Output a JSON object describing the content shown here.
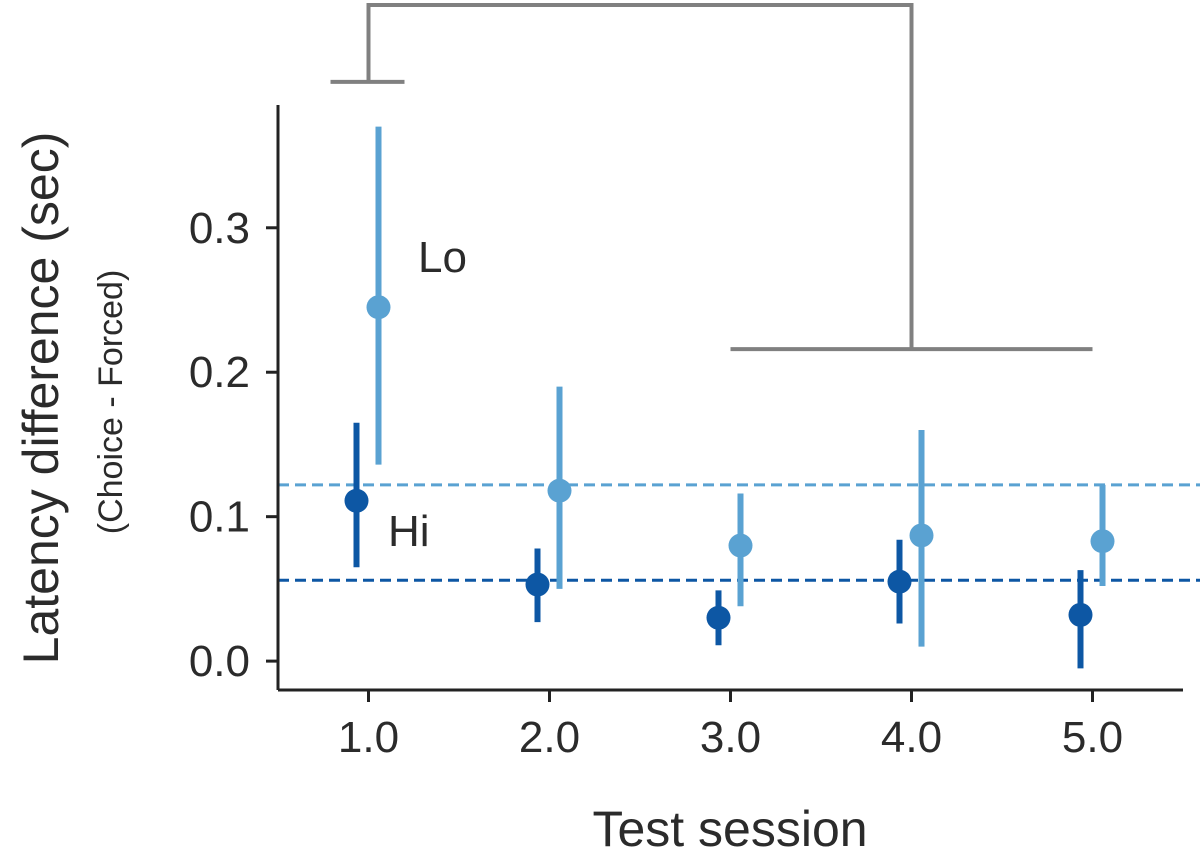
{
  "chart_data": {
    "type": "scatter",
    "xlabel": "Test session",
    "ylabel": "Latency difference (sec)",
    "ylabel_sub": "(Choice - Forced)",
    "xlim": [
      0.5,
      5.5
    ],
    "ylim": [
      -0.02,
      0.385
    ],
    "x_ticks": [
      1.0,
      2.0,
      3.0,
      4.0,
      5.0
    ],
    "x_tick_labels": [
      "1.0",
      "2.0",
      "3.0",
      "4.0",
      "5.0"
    ],
    "y_ticks": [
      0.0,
      0.1,
      0.2,
      0.3
    ],
    "y_tick_labels": [
      "0.0",
      "0.1",
      "0.2",
      "0.3"
    ],
    "grid": false,
    "series": [
      {
        "name": "Lo",
        "color": "#5aa2d2",
        "x": [
          1.0,
          2.0,
          3.0,
          4.0,
          5.0
        ],
        "y": [
          0.245,
          0.118,
          0.08,
          0.087,
          0.083
        ],
        "ci_low": [
          0.136,
          0.05,
          0.038,
          0.01,
          0.052
        ],
        "ci_high": [
          0.37,
          0.19,
          0.116,
          0.16,
          0.122
        ],
        "mean_line": 0.122
      },
      {
        "name": "Hi",
        "color": "#0d57a4",
        "x": [
          1.0,
          2.0,
          3.0,
          4.0,
          5.0
        ],
        "y": [
          0.111,
          0.053,
          0.03,
          0.055,
          0.032
        ],
        "ci_low": [
          0.065,
          0.027,
          0.011,
          0.026,
          -0.005
        ],
        "ci_high": [
          0.165,
          0.078,
          0.049,
          0.084,
          0.063
        ],
        "mean_line": 0.056
      }
    ],
    "comparison_bracket": {
      "color": "#808080",
      "left_x": 1.0,
      "left_y": 0.401,
      "right_x_range": [
        3.0,
        5.0
      ],
      "right_y": 0.216
    }
  }
}
